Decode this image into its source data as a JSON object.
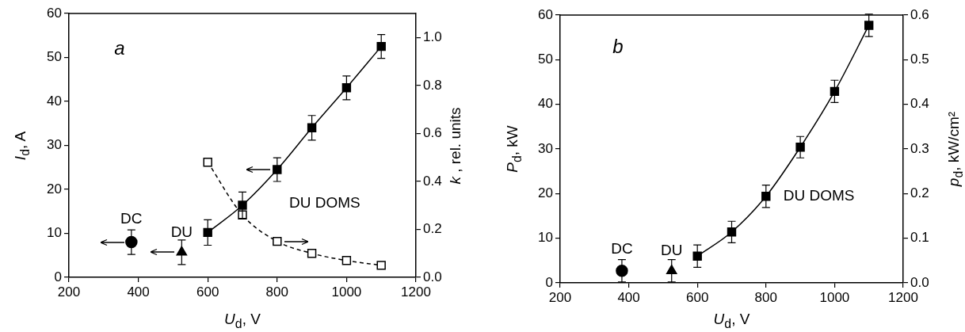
{
  "chart_data": [
    {
      "type": "scatter",
      "xlabel": "U$_{d}$, V",
      "ylabel": "I$_{d}$, A",
      "y2label": "k , rel. units",
      "annotations": [
        "a"
      ],
      "xlim": [
        200,
        1200
      ],
      "xticks": [
        200,
        400,
        600,
        800,
        1000,
        1200
      ],
      "ylim": [
        0,
        60
      ],
      "yticks": [
        0,
        10,
        20,
        30,
        40,
        50,
        60
      ],
      "y2lim": [
        0,
        1.1
      ],
      "y2ticks": [
        {
          "value": 0,
          "label": "0.0"
        },
        {
          "value": 0.2,
          "label": "0.2"
        },
        {
          "value": 0.4,
          "label": "0.4"
        },
        {
          "value": 0.6,
          "label": "0.6"
        },
        {
          "value": 0.8,
          "label": "0.8"
        },
        {
          "value": 1,
          "label": "1.0"
        }
      ],
      "grid": false,
      "legend": false,
      "series": [
        {
          "name": "DC",
          "type": "scatter",
          "marker": "circle",
          "color": "#000000",
          "x": [
            380
          ],
          "values": [
            8
          ],
          "errors": [
            2.8
          ]
        },
        {
          "name": "DU",
          "type": "scatter",
          "marker": "triangle",
          "color": "#000000",
          "x": [
            525
          ],
          "values": [
            5.7
          ],
          "errors": [
            2.8
          ]
        },
        {
          "name": "DU DOMS",
          "type": "line",
          "marker": "square",
          "line_style": "solid",
          "color": "#000000",
          "x": [
            600,
            700,
            800,
            900,
            1000,
            1100
          ],
          "values": [
            10.2,
            16.4,
            24.5,
            34,
            43.1,
            52.5
          ],
          "errors": [
            2.9,
            3,
            2.7,
            2.8,
            2.7,
            2.7
          ]
        },
        {
          "type": "line",
          "axis": "y2",
          "marker": "square",
          "line_style": "dashed",
          "color": "#000000",
          "x": [
            600,
            700,
            800,
            900,
            1000,
            1100
          ],
          "values": [
            0.48,
            0.26,
            0.15,
            0.1,
            0.07,
            0.05
          ]
        }
      ]
    },
    {
      "type": "scatter",
      "xlabel": "U$_{d}$, V",
      "ylabel": "P$_{d}$, kW",
      "y2label": "p$_{d}$, kW/cm²",
      "annotations": [
        "b"
      ],
      "xlim": [
        200,
        1200
      ],
      "xticks": [
        200,
        400,
        600,
        800,
        1000,
        1200
      ],
      "ylim": [
        0,
        60
      ],
      "yticks": [
        0,
        10,
        20,
        30,
        40,
        50,
        60
      ],
      "y2lim": [
        0,
        0.6
      ],
      "y2ticks": [
        {
          "value": 0,
          "label": "0.0"
        },
        {
          "value": 0.1,
          "label": "0.1"
        },
        {
          "value": 0.2,
          "label": "0.2"
        },
        {
          "value": 0.3,
          "label": "0.3"
        },
        {
          "value": 0.4,
          "label": "0.4"
        },
        {
          "value": 0.5,
          "label": "0.5"
        },
        {
          "value": 0.6,
          "label": "0.6"
        }
      ],
      "grid": false,
      "legend": false,
      "series": [
        {
          "name": "DC",
          "type": "scatter",
          "marker": "circle",
          "color": "#000000",
          "x": [
            380
          ],
          "values": [
            2.7
          ],
          "errors": [
            2.5
          ]
        },
        {
          "name": "DU",
          "type": "scatter",
          "marker": "triangle",
          "color": "#000000",
          "x": [
            525
          ],
          "values": [
            2.7
          ],
          "errors": [
            2.5
          ]
        },
        {
          "name": "DU DOMS",
          "type": "line",
          "marker": "square",
          "line_style": "solid",
          "color": "#000000",
          "x": [
            600,
            700,
            800,
            900,
            1000,
            1100
          ],
          "values": [
            6,
            11.4,
            19.4,
            30.4,
            42.9,
            57.7
          ],
          "errors": [
            2.5,
            2.4,
            2.5,
            2.4,
            2.5,
            2.5
          ]
        }
      ]
    }
  ]
}
